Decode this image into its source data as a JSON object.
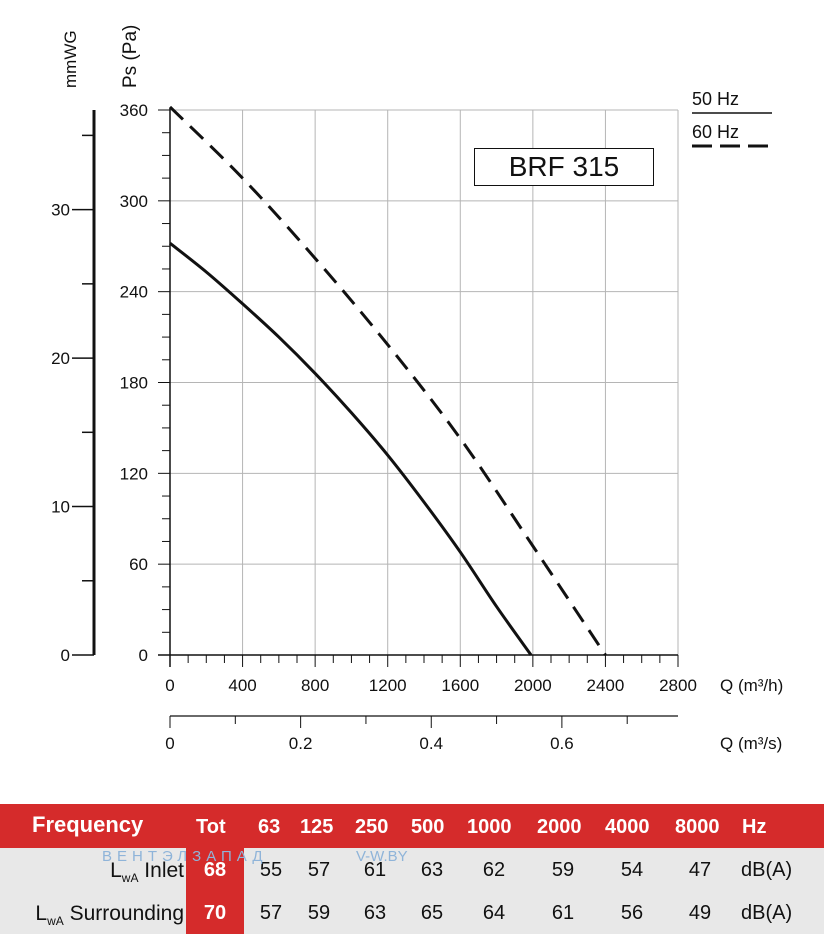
{
  "chart_data": {
    "type": "line",
    "title": "BRF 315",
    "y_label": "Ps (Pa)",
    "y2_label": "mmWG",
    "x_label": "Q (m³/h)",
    "x2_label": "Q (m³/s)",
    "ylim": [
      0,
      360
    ],
    "xlim": [
      0,
      2800
    ],
    "y_ticks": [
      "0",
      "60",
      "120",
      "180",
      "240",
      "300",
      "360"
    ],
    "x_ticks": [
      "0",
      "400",
      "800",
      "1200",
      "1600",
      "2000",
      "2400",
      "2800"
    ],
    "x2_ticks": [
      "0",
      "0.2",
      "0.4",
      "0.6"
    ],
    "y2_ticks": [
      "0",
      "10",
      "20",
      "30"
    ],
    "grid": true,
    "legend": {
      "position": "top-right",
      "entries": [
        {
          "label": "50 Hz",
          "style": "solid"
        },
        {
          "label": "60 Hz",
          "style": "dashed"
        }
      ]
    },
    "series": [
      {
        "style": "solid",
        "points": [
          [
            0,
            272
          ],
          [
            200,
            253
          ],
          [
            400,
            232
          ],
          [
            600,
            210
          ],
          [
            800,
            186
          ],
          [
            1000,
            160
          ],
          [
            1200,
            132
          ],
          [
            1400,
            101
          ],
          [
            1600,
            68
          ],
          [
            1800,
            32
          ],
          [
            1990,
            0
          ]
        ]
      },
      {
        "style": "dashed",
        "points": [
          [
            0,
            362
          ],
          [
            400,
            315
          ],
          [
            800,
            262
          ],
          [
            1200,
            205
          ],
          [
            1600,
            143
          ],
          [
            2000,
            72
          ],
          [
            2400,
            0
          ]
        ]
      }
    ]
  },
  "table": {
    "header": {
      "label": "Frequency",
      "tot": "Tot",
      "bands": [
        "63",
        "125",
        "250",
        "500",
        "1000",
        "2000",
        "4000",
        "8000"
      ],
      "unit": "Hz"
    },
    "rows": [
      {
        "label_main": "L",
        "label_sub": "wA",
        "label_rest": " Inlet",
        "tot": "68",
        "values": [
          "55",
          "57",
          "61",
          "63",
          "62",
          "59",
          "54",
          "47"
        ],
        "unit": "dB(A)"
      },
      {
        "label_main": "L",
        "label_sub": "wA",
        "label_rest": " Surrounding",
        "tot": "70",
        "values": [
          "57",
          "59",
          "63",
          "65",
          "64",
          "61",
          "56",
          "49"
        ],
        "unit": "dB(A)"
      }
    ]
  },
  "watermark": {
    "text1": "ВЕНТЭЛЗАПАД",
    "text2": "V-W.BY"
  }
}
